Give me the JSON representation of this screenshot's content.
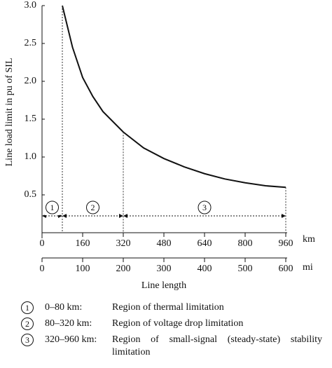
{
  "chart_data": {
    "type": "line",
    "ylabel": "Line load limit in pu of SIL",
    "xlabel": "Line length",
    "x_unit": "km",
    "x2_unit": "mi",
    "x": [
      80,
      120,
      160,
      200,
      240,
      320,
      400,
      480,
      560,
      640,
      720,
      800,
      880,
      960
    ],
    "series": [
      {
        "color": "#111111",
        "values": [
          3.0,
          2.45,
          2.05,
          1.8,
          1.6,
          1.33,
          1.12,
          0.98,
          0.87,
          0.78,
          0.71,
          0.66,
          0.62,
          0.6
        ]
      }
    ],
    "xlim": [
      0,
      960
    ],
    "xticks": [
      0,
      160,
      320,
      480,
      640,
      800,
      960
    ],
    "x2lim": [
      0,
      600
    ],
    "x2ticks": [
      0,
      100,
      200,
      300,
      400,
      500,
      600
    ],
    "ylim": [
      0,
      3
    ],
    "yticks": [
      {
        "value": 3,
        "label": "3.0"
      },
      2.5,
      {
        "value": 2,
        "label": "2.0"
      },
      1.5,
      {
        "value": 1,
        "label": "1.0"
      },
      0.5
    ],
    "regions": [
      {
        "label": "1",
        "from": 0,
        "to": 80,
        "range": "0–80 km:",
        "description": "Region of thermal limitation"
      },
      {
        "label": "2",
        "from": 80,
        "to": 320,
        "range": "80–320 km:",
        "description": "Region of voltage drop limitation"
      },
      {
        "label": "3",
        "from": 320,
        "to": 960,
        "range": "320–960 km:",
        "description": "Region of small-signal (steady-state) stability limitation"
      }
    ]
  }
}
